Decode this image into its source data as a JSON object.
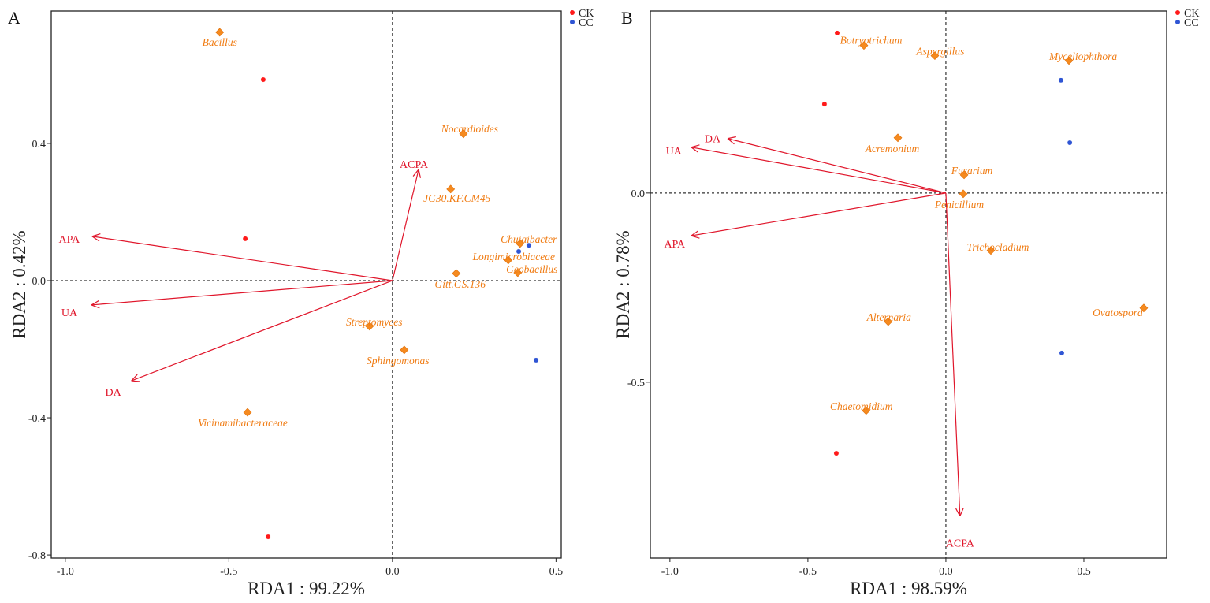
{
  "chart_data": [
    {
      "type": "scatter",
      "panel_label": "A",
      "xlabel": "RDA1 : 99.22%",
      "ylabel": "RDA2 : 0.42%",
      "xlim": [
        -1.043,
        0.516
      ],
      "ylim": [
        -0.809,
        0.786
      ],
      "xticks": [
        "-1.0",
        "-0.5",
        "0.0",
        "0.5"
      ],
      "xtick_values": [
        -1.0,
        -0.5,
        0.0,
        0.5
      ],
      "yticks": [
        "0.4",
        "0.0",
        "-0.4",
        "-0.8"
      ],
      "ytick_values": [
        0.4,
        0.0,
        -0.4,
        -0.8
      ],
      "legend": [
        {
          "name": "CK",
          "color": "#ff1a1a"
        },
        {
          "name": "CC",
          "color": "#2f55d4"
        }
      ],
      "legend_position": "top-right-outside",
      "samples": [
        {
          "group": "CK",
          "x": -0.395,
          "y": 0.586
        },
        {
          "group": "CK",
          "x": -0.45,
          "y": 0.122
        },
        {
          "group": "CK",
          "x": -0.38,
          "y": -0.747
        },
        {
          "group": "CC",
          "x": 0.417,
          "y": 0.103
        },
        {
          "group": "CC",
          "x": 0.386,
          "y": 0.085
        },
        {
          "group": "CC",
          "x": 0.439,
          "y": -0.232
        }
      ],
      "species": [
        {
          "name": "Bacillus",
          "x": -0.528,
          "y": 0.724
        },
        {
          "name": "Nocardioides",
          "x": 0.217,
          "y": 0.428
        },
        {
          "name": "JG30.KF.CM45",
          "x": 0.178,
          "y": 0.267
        },
        {
          "name": "Chujaibacter",
          "x": 0.39,
          "y": 0.108
        },
        {
          "name": "Longimicrobiaceae",
          "x": 0.354,
          "y": 0.06
        },
        {
          "name": "Geobacillus",
          "x": 0.383,
          "y": 0.023
        },
        {
          "name": "Gitt.GS.136",
          "x": 0.195,
          "y": 0.021
        },
        {
          "name": "Streptomyces",
          "x": -0.07,
          "y": -0.133
        },
        {
          "name": "Sphingomonas",
          "x": 0.036,
          "y": -0.202
        },
        {
          "name": "Vicinamibacteraceae",
          "x": -0.443,
          "y": -0.384
        }
      ],
      "environment_arrows": [
        {
          "name": "APA",
          "x": -0.918,
          "y": 0.129
        },
        {
          "name": "UA",
          "x": -0.92,
          "y": -0.071
        },
        {
          "name": "DA",
          "x": -0.798,
          "y": -0.292
        },
        {
          "name": "ACPA",
          "x": 0.08,
          "y": 0.324
        }
      ]
    },
    {
      "type": "scatter",
      "panel_label": "B",
      "xlabel": "RDA1 : 98.59%",
      "ylabel": "RDA2 : 0.78%",
      "xlim": [
        -1.071,
        0.8
      ],
      "ylim": [
        -0.965,
        0.481
      ],
      "xticks": [
        "-1.0",
        "-0.5",
        "0.0",
        "0.5"
      ],
      "xtick_values": [
        -1.0,
        -0.5,
        0.0,
        0.5
      ],
      "yticks": [
        "0.0",
        "-0.5"
      ],
      "ytick_values": [
        0.0,
        -0.5
      ],
      "legend": [
        {
          "name": "CK",
          "color": "#ff1a1a"
        },
        {
          "name": "CC",
          "color": "#2f55d4"
        }
      ],
      "legend_position": "top-right-outside",
      "samples": [
        {
          "group": "CK",
          "x": -0.394,
          "y": 0.423
        },
        {
          "group": "CK",
          "x": -0.44,
          "y": 0.235
        },
        {
          "group": "CK",
          "x": -0.397,
          "y": -0.688
        },
        {
          "group": "CC",
          "x": 0.417,
          "y": 0.298
        },
        {
          "group": "CC",
          "x": 0.449,
          "y": 0.133
        },
        {
          "group": "CC",
          "x": 0.42,
          "y": -0.423
        }
      ],
      "species": [
        {
          "name": "Botryotrichum",
          "x": -0.297,
          "y": 0.39
        },
        {
          "name": "Aspergillus",
          "x": -0.04,
          "y": 0.363
        },
        {
          "name": "Myceliophthora",
          "x": 0.446,
          "y": 0.35
        },
        {
          "name": "Acremonium",
          "x": -0.174,
          "y": 0.146
        },
        {
          "name": "Fusarium",
          "x": 0.066,
          "y": 0.048
        },
        {
          "name": "Penicillium",
          "x": 0.063,
          "y": -0.002
        },
        {
          "name": "Trichocladium",
          "x": 0.163,
          "y": -0.152
        },
        {
          "name": "Ovatospora",
          "x": 0.717,
          "y": -0.304
        },
        {
          "name": "Alternaria",
          "x": -0.209,
          "y": -0.34
        },
        {
          "name": "Chaetomidium",
          "x": -0.289,
          "y": -0.575
        }
      ],
      "environment_arrows": [
        {
          "name": "DA",
          "x": -0.791,
          "y": 0.144
        },
        {
          "name": "UA",
          "x": -0.923,
          "y": 0.121
        },
        {
          "name": "APA",
          "x": -0.923,
          "y": -0.113
        },
        {
          "name": "ACPA",
          "x": 0.051,
          "y": -0.854
        }
      ]
    }
  ]
}
